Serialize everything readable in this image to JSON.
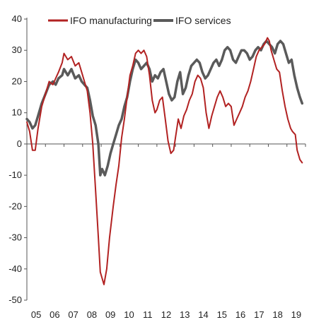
{
  "chart_data": {
    "type": "line",
    "title": "",
    "xlabel": "",
    "ylabel": "",
    "ylim": [
      -50,
      40
    ],
    "yticks": [
      40,
      30,
      20,
      10,
      0,
      -10,
      -20,
      -30,
      -40,
      -50
    ],
    "xlim": [
      2005.0,
      2020.0
    ],
    "xtick_labels": [
      "05",
      "06",
      "07",
      "08",
      "09",
      "10",
      "11",
      "12",
      "13",
      "14",
      "15",
      "16",
      "17",
      "18",
      "19"
    ],
    "grid": false,
    "legend_position": "top",
    "series": [
      {
        "name": "IFO manufacturing",
        "color": "#b22222",
        "points": [
          [
            2005.0,
            7
          ],
          [
            2005.15,
            4
          ],
          [
            2005.3,
            -2
          ],
          [
            2005.45,
            -2
          ],
          [
            2005.6,
            5
          ],
          [
            2005.8,
            12
          ],
          [
            2006.0,
            16
          ],
          [
            2006.2,
            20
          ],
          [
            2006.4,
            19
          ],
          [
            2006.55,
            21
          ],
          [
            2006.7,
            23
          ],
          [
            2006.9,
            26
          ],
          [
            2007.0,
            29
          ],
          [
            2007.2,
            27
          ],
          [
            2007.4,
            28
          ],
          [
            2007.6,
            25
          ],
          [
            2007.8,
            26
          ],
          [
            2007.95,
            23
          ],
          [
            2008.1,
            20
          ],
          [
            2008.25,
            17
          ],
          [
            2008.4,
            10
          ],
          [
            2008.55,
            0
          ],
          [
            2008.7,
            -15
          ],
          [
            2008.85,
            -30
          ],
          [
            2008.95,
            -41
          ],
          [
            2009.05,
            -43
          ],
          [
            2009.15,
            -45
          ],
          [
            2009.3,
            -40
          ],
          [
            2009.45,
            -30
          ],
          [
            2009.65,
            -20
          ],
          [
            2009.8,
            -13
          ],
          [
            2009.95,
            -7
          ],
          [
            2010.1,
            2
          ],
          [
            2010.25,
            8
          ],
          [
            2010.4,
            15
          ],
          [
            2010.55,
            22
          ],
          [
            2010.7,
            25
          ],
          [
            2010.85,
            29
          ],
          [
            2011.0,
            30
          ],
          [
            2011.15,
            29
          ],
          [
            2011.3,
            30
          ],
          [
            2011.45,
            28
          ],
          [
            2011.6,
            22
          ],
          [
            2011.75,
            14
          ],
          [
            2011.9,
            10
          ],
          [
            2012.0,
            11
          ],
          [
            2012.15,
            14
          ],
          [
            2012.3,
            15
          ],
          [
            2012.45,
            8
          ],
          [
            2012.6,
            1
          ],
          [
            2012.75,
            -3
          ],
          [
            2012.9,
            -2
          ],
          [
            2013.0,
            2
          ],
          [
            2013.15,
            8
          ],
          [
            2013.3,
            5
          ],
          [
            2013.45,
            9
          ],
          [
            2013.6,
            11
          ],
          [
            2013.75,
            14
          ],
          [
            2013.9,
            16
          ],
          [
            2014.05,
            20
          ],
          [
            2014.2,
            22
          ],
          [
            2014.35,
            21
          ],
          [
            2014.5,
            18
          ],
          [
            2014.65,
            10
          ],
          [
            2014.8,
            5
          ],
          [
            2014.95,
            9
          ],
          [
            2015.1,
            12
          ],
          [
            2015.25,
            15
          ],
          [
            2015.4,
            17
          ],
          [
            2015.55,
            15
          ],
          [
            2015.7,
            12
          ],
          [
            2015.85,
            13
          ],
          [
            2016.0,
            12
          ],
          [
            2016.15,
            6
          ],
          [
            2016.3,
            8
          ],
          [
            2016.45,
            10
          ],
          [
            2016.6,
            12
          ],
          [
            2016.75,
            15
          ],
          [
            2016.9,
            17
          ],
          [
            2017.05,
            20
          ],
          [
            2017.2,
            24
          ],
          [
            2017.35,
            28
          ],
          [
            2017.5,
            30
          ],
          [
            2017.65,
            31
          ],
          [
            2017.8,
            32
          ],
          [
            2017.95,
            34
          ],
          [
            2018.05,
            33
          ],
          [
            2018.15,
            30
          ],
          [
            2018.3,
            27
          ],
          [
            2018.45,
            24
          ],
          [
            2018.6,
            23
          ],
          [
            2018.75,
            17
          ],
          [
            2018.9,
            12
          ],
          [
            2019.05,
            8
          ],
          [
            2019.2,
            5
          ],
          [
            2019.3,
            4
          ],
          [
            2019.45,
            3
          ],
          [
            2019.55,
            -2
          ],
          [
            2019.7,
            -5
          ],
          [
            2019.82,
            -6
          ]
        ]
      },
      {
        "name": "IFO services",
        "color": "#5a5a5a",
        "points": [
          [
            2005.0,
            8
          ],
          [
            2005.15,
            7
          ],
          [
            2005.3,
            5
          ],
          [
            2005.45,
            6
          ],
          [
            2005.6,
            9
          ],
          [
            2005.8,
            13
          ],
          [
            2006.0,
            16
          ],
          [
            2006.2,
            19
          ],
          [
            2006.4,
            20
          ],
          [
            2006.55,
            19
          ],
          [
            2006.7,
            21
          ],
          [
            2006.9,
            22
          ],
          [
            2007.0,
            24
          ],
          [
            2007.2,
            22
          ],
          [
            2007.4,
            24
          ],
          [
            2007.6,
            21
          ],
          [
            2007.8,
            22
          ],
          [
            2007.95,
            20
          ],
          [
            2008.1,
            19
          ],
          [
            2008.25,
            18
          ],
          [
            2008.4,
            14
          ],
          [
            2008.55,
            9
          ],
          [
            2008.7,
            6
          ],
          [
            2008.85,
            0
          ],
          [
            2008.95,
            -10
          ],
          [
            2009.05,
            -8
          ],
          [
            2009.2,
            -10
          ],
          [
            2009.35,
            -7
          ],
          [
            2009.5,
            -3
          ],
          [
            2009.65,
            0
          ],
          [
            2009.8,
            3
          ],
          [
            2009.95,
            6
          ],
          [
            2010.1,
            8
          ],
          [
            2010.25,
            12
          ],
          [
            2010.4,
            15
          ],
          [
            2010.55,
            20
          ],
          [
            2010.7,
            24
          ],
          [
            2010.85,
            27
          ],
          [
            2011.0,
            26
          ],
          [
            2011.15,
            24
          ],
          [
            2011.3,
            25
          ],
          [
            2011.45,
            26
          ],
          [
            2011.6,
            24
          ],
          [
            2011.75,
            20
          ],
          [
            2011.9,
            22
          ],
          [
            2012.05,
            21
          ],
          [
            2012.2,
            23
          ],
          [
            2012.35,
            24
          ],
          [
            2012.5,
            20
          ],
          [
            2012.65,
            16
          ],
          [
            2012.8,
            14
          ],
          [
            2012.95,
            15
          ],
          [
            2013.1,
            20
          ],
          [
            2013.25,
            23
          ],
          [
            2013.4,
            16
          ],
          [
            2013.55,
            18
          ],
          [
            2013.7,
            22
          ],
          [
            2013.85,
            25
          ],
          [
            2014.0,
            26
          ],
          [
            2014.15,
            27
          ],
          [
            2014.3,
            26
          ],
          [
            2014.45,
            23
          ],
          [
            2014.6,
            21
          ],
          [
            2014.75,
            22
          ],
          [
            2014.9,
            24
          ],
          [
            2015.05,
            26
          ],
          [
            2015.2,
            27
          ],
          [
            2015.35,
            25
          ],
          [
            2015.5,
            27
          ],
          [
            2015.65,
            30
          ],
          [
            2015.8,
            31
          ],
          [
            2015.95,
            30
          ],
          [
            2016.1,
            27
          ],
          [
            2016.25,
            26
          ],
          [
            2016.4,
            28
          ],
          [
            2016.55,
            30
          ],
          [
            2016.7,
            30
          ],
          [
            2016.85,
            29
          ],
          [
            2017.0,
            27
          ],
          [
            2017.15,
            28
          ],
          [
            2017.3,
            30
          ],
          [
            2017.45,
            31
          ],
          [
            2017.6,
            30
          ],
          [
            2017.75,
            32
          ],
          [
            2017.9,
            33
          ],
          [
            2018.05,
            32
          ],
          [
            2018.2,
            31
          ],
          [
            2018.35,
            29
          ],
          [
            2018.5,
            32
          ],
          [
            2018.65,
            33
          ],
          [
            2018.8,
            32
          ],
          [
            2018.95,
            29
          ],
          [
            2019.1,
            26
          ],
          [
            2019.25,
            27
          ],
          [
            2019.4,
            22
          ],
          [
            2019.55,
            18
          ],
          [
            2019.7,
            15
          ],
          [
            2019.82,
            13
          ]
        ]
      }
    ]
  }
}
